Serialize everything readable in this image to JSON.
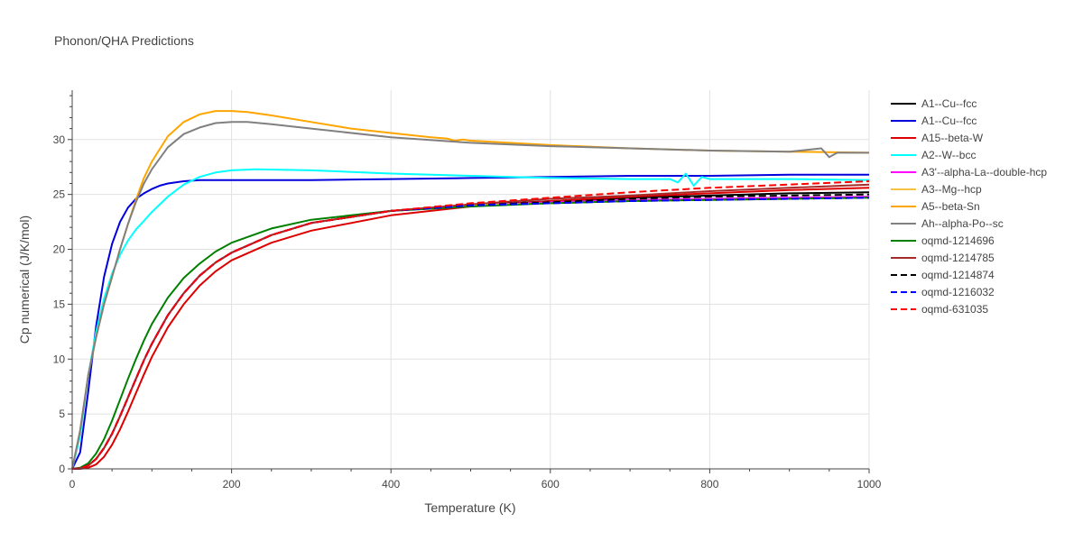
{
  "chart_data": {
    "type": "line",
    "title": "Phonon/QHA Predictions",
    "xlabel": "Temperature (K)",
    "ylabel": "Cp numerical (J/K/mol)",
    "xlim": [
      0,
      1000
    ],
    "ylim": [
      0,
      34.5
    ],
    "x_ticks": [
      0,
      200,
      400,
      600,
      800,
      1000
    ],
    "y_ticks": [
      0,
      5,
      10,
      15,
      20,
      25,
      30
    ],
    "grid": true,
    "legend_position": "right",
    "series": [
      {
        "name": "A1--Cu--fcc",
        "color": "#000000",
        "dash": "solid",
        "x": [
          0,
          10,
          20,
          30,
          40,
          50,
          60,
          70,
          80,
          90,
          100,
          120,
          140,
          160,
          180,
          200,
          250,
          300,
          400,
          500,
          600,
          700,
          800,
          900,
          1000
        ],
        "y": [
          0,
          0.05,
          0.3,
          0.9,
          1.9,
          3.2,
          4.8,
          6.5,
          8.2,
          9.9,
          11.4,
          14,
          16,
          17.6,
          18.8,
          19.7,
          21.3,
          22.4,
          23.5,
          24,
          24.4,
          24.7,
          24.9,
          25.1,
          25.2
        ]
      },
      {
        "name": "A1--Cu--fcc",
        "color": "#0000dd",
        "dash": "solid",
        "x": [
          0,
          10,
          20,
          30,
          40,
          50,
          60,
          70,
          80,
          90,
          100,
          110,
          120,
          140,
          160,
          180,
          200,
          300,
          400,
          500,
          600,
          700,
          800,
          900,
          1000
        ],
        "y": [
          0,
          1.5,
          7,
          13,
          17.5,
          20.5,
          22.5,
          23.8,
          24.6,
          25.1,
          25.5,
          25.8,
          26,
          26.2,
          26.3,
          26.3,
          26.3,
          26.3,
          26.4,
          26.5,
          26.6,
          26.7,
          26.7,
          26.8,
          26.8
        ]
      },
      {
        "name": "A15--beta-W",
        "color": "#dd0000",
        "dash": "solid",
        "x": [
          0,
          10,
          20,
          30,
          40,
          50,
          60,
          70,
          80,
          90,
          100,
          120,
          140,
          160,
          180,
          200,
          250,
          300,
          400,
          500,
          600,
          700,
          800,
          900,
          1000
        ],
        "y": [
          0,
          0,
          0.1,
          0.4,
          1.1,
          2.2,
          3.6,
          5.2,
          6.9,
          8.6,
          10.2,
          12.9,
          15,
          16.7,
          18,
          19,
          20.6,
          21.7,
          23.1,
          23.9,
          24.4,
          24.8,
          25.1,
          25.4,
          25.6
        ]
      },
      {
        "name": "A2--W--bcc",
        "color": "#00ffff",
        "dash": "solid",
        "x": [
          0,
          10,
          20,
          30,
          40,
          50,
          60,
          70,
          80,
          90,
          100,
          120,
          140,
          160,
          180,
          200,
          230,
          300,
          400,
          500,
          600,
          700,
          750,
          760,
          770,
          780,
          790,
          800,
          900,
          1000
        ],
        "y": [
          0,
          3,
          8.5,
          12.5,
          15.5,
          17.8,
          19.5,
          20.8,
          21.8,
          22.6,
          23.4,
          24.8,
          25.9,
          26.6,
          27,
          27.2,
          27.3,
          27.2,
          26.9,
          26.7,
          26.5,
          26.4,
          26.4,
          26.1,
          26.9,
          25.8,
          26.6,
          26.4,
          26.4,
          26.3
        ]
      },
      {
        "name": "A3'--alpha-La--double-hcp",
        "color": "#ff00ff",
        "dash": "solid",
        "x": [
          0,
          10,
          20,
          30,
          40,
          50,
          60,
          70,
          80,
          90,
          100,
          120,
          140,
          160,
          180,
          200,
          250,
          300,
          400,
          500,
          600,
          700,
          800,
          900,
          1000
        ],
        "y": [
          0,
          0.05,
          0.3,
          0.9,
          1.9,
          3.2,
          4.8,
          6.5,
          8.2,
          9.9,
          11.4,
          14,
          16,
          17.6,
          18.8,
          19.7,
          21.3,
          22.4,
          23.5,
          24,
          24.3,
          24.5,
          24.6,
          24.7,
          24.8
        ]
      },
      {
        "name": "A3--Mg--hcp",
        "color": "#f5c242",
        "dash": "solid",
        "x": [
          0,
          10,
          20,
          30,
          40,
          50,
          60,
          70,
          80,
          90,
          100,
          120,
          140,
          160,
          180,
          200,
          250,
          300,
          400,
          500,
          600,
          700,
          800,
          900,
          1000
        ],
        "y": [
          0,
          0.05,
          0.3,
          0.9,
          1.9,
          3.2,
          4.8,
          6.5,
          8.2,
          9.9,
          11.4,
          14,
          16,
          17.6,
          18.8,
          19.7,
          21.3,
          22.4,
          23.5,
          24,
          24.2,
          24.4,
          24.5,
          24.6,
          24.7
        ]
      },
      {
        "name": "A5--beta-Sn",
        "color": "#ffa500",
        "dash": "solid",
        "x": [
          0,
          10,
          20,
          30,
          40,
          50,
          60,
          70,
          80,
          90,
          100,
          120,
          140,
          160,
          180,
          200,
          220,
          250,
          300,
          350,
          400,
          450,
          470,
          480,
          490,
          500,
          600,
          700,
          800,
          900,
          1000
        ],
        "y": [
          0,
          3.5,
          8.5,
          12,
          15,
          17.5,
          20,
          22.3,
          24.5,
          26.5,
          28,
          30.3,
          31.6,
          32.3,
          32.6,
          32.6,
          32.5,
          32.2,
          31.6,
          31,
          30.6,
          30.2,
          30.1,
          29.9,
          30,
          29.9,
          29.5,
          29.2,
          29,
          28.9,
          28.8
        ]
      },
      {
        "name": "Ah--alpha-Po--sc",
        "color": "#808080",
        "dash": "solid",
        "x": [
          0,
          10,
          20,
          30,
          40,
          50,
          60,
          70,
          80,
          90,
          100,
          120,
          140,
          160,
          180,
          200,
          220,
          250,
          300,
          400,
          500,
          600,
          700,
          800,
          900,
          940,
          950,
          960,
          970,
          1000
        ],
        "y": [
          0,
          3.5,
          8.5,
          12,
          15,
          17.5,
          20,
          22.3,
          24.3,
          26,
          27.3,
          29.3,
          30.5,
          31.1,
          31.5,
          31.6,
          31.6,
          31.4,
          31,
          30.2,
          29.7,
          29.4,
          29.2,
          29,
          28.9,
          29.2,
          28.4,
          28.8,
          28.8,
          28.8
        ]
      },
      {
        "name": "oqmd-1214696",
        "color": "#008000",
        "dash": "solid",
        "x": [
          0,
          10,
          20,
          30,
          40,
          50,
          60,
          70,
          80,
          90,
          100,
          120,
          140,
          160,
          180,
          200,
          250,
          300,
          400,
          500,
          600,
          700,
          800,
          900,
          1000
        ],
        "y": [
          0,
          0.1,
          0.5,
          1.4,
          2.7,
          4.4,
          6.3,
          8.2,
          10,
          11.7,
          13.2,
          15.6,
          17.4,
          18.7,
          19.8,
          20.6,
          21.9,
          22.7,
          23.5,
          23.9,
          24.2,
          24.4,
          24.5,
          24.6,
          24.7
        ]
      },
      {
        "name": "oqmd-1214785",
        "color": "#a52a2a",
        "dash": "solid",
        "x": [
          0,
          10,
          20,
          30,
          40,
          50,
          60,
          70,
          80,
          90,
          100,
          120,
          140,
          160,
          180,
          200,
          250,
          300,
          400,
          500,
          600,
          700,
          800,
          900,
          1000
        ],
        "y": [
          0,
          0.05,
          0.3,
          0.9,
          1.9,
          3.2,
          4.8,
          6.5,
          8.2,
          9.9,
          11.4,
          14,
          16,
          17.6,
          18.8,
          19.7,
          21.3,
          22.4,
          23.5,
          24.1,
          24.6,
          24.9,
          25.3,
          25.6,
          25.9
        ]
      },
      {
        "name": "oqmd-1214874",
        "color": "#000000",
        "dash": "dash",
        "x": [
          0,
          10,
          20,
          30,
          40,
          50,
          60,
          70,
          80,
          90,
          100,
          120,
          140,
          160,
          180,
          200,
          250,
          300,
          400,
          500,
          600,
          700,
          800,
          900,
          1000
        ],
        "y": [
          0,
          0.05,
          0.3,
          0.9,
          1.9,
          3.2,
          4.8,
          6.5,
          8.2,
          9.9,
          11.4,
          14,
          16,
          17.6,
          18.8,
          19.7,
          21.3,
          22.4,
          23.5,
          24,
          24.3,
          24.6,
          24.8,
          24.9,
          25
        ]
      },
      {
        "name": "oqmd-1216032",
        "color": "#0000ff",
        "dash": "dash",
        "x": [
          0,
          10,
          20,
          30,
          40,
          50,
          60,
          70,
          80,
          90,
          100,
          120,
          140,
          160,
          180,
          200,
          250,
          300,
          400,
          500,
          600,
          700,
          800,
          900,
          1000
        ],
        "y": [
          0,
          0.05,
          0.3,
          0.9,
          1.9,
          3.2,
          4.8,
          6.5,
          8.2,
          9.9,
          11.4,
          14,
          16,
          17.6,
          18.8,
          19.7,
          21.3,
          22.4,
          23.5,
          24,
          24.2,
          24.4,
          24.5,
          24.6,
          24.7
        ]
      },
      {
        "name": "oqmd-631035",
        "color": "#ff0000",
        "dash": "dash",
        "x": [
          0,
          10,
          20,
          30,
          40,
          50,
          60,
          70,
          80,
          90,
          100,
          120,
          140,
          160,
          180,
          200,
          250,
          300,
          400,
          500,
          600,
          700,
          800,
          900,
          1000
        ],
        "y": [
          0,
          0.05,
          0.3,
          0.9,
          1.9,
          3.2,
          4.8,
          6.5,
          8.2,
          9.9,
          11.4,
          14,
          16,
          17.6,
          18.8,
          19.7,
          21.3,
          22.4,
          23.5,
          24.2,
          24.7,
          25.2,
          25.6,
          25.9,
          26.2
        ]
      }
    ]
  }
}
